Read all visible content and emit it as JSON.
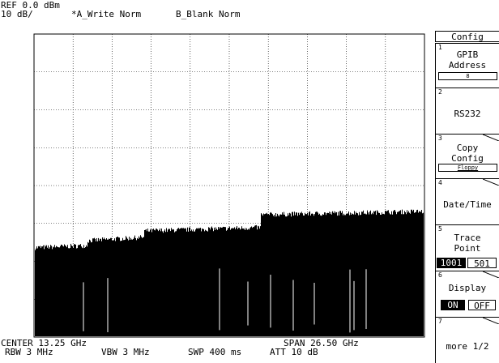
{
  "header": {
    "ref": "REF 0.0 dBm",
    "scale": "10 dB/",
    "trace_a": "*A_Write Norm",
    "trace_b": "B_Blank Norm"
  },
  "footer": {
    "center": "CENTER 13.25 GHz",
    "span": "SPAN 26.50 GHz",
    "rbw": "RBW 3 MHz",
    "vbw": "VBW 3 MHz",
    "swp": "SWP 400 ms",
    "att": "ATT 10 dB"
  },
  "menu": {
    "title": "Config",
    "keys": [
      {
        "num": "1",
        "label": "GPIB\nAddress",
        "value": "8"
      },
      {
        "num": "2",
        "label": "RS232"
      },
      {
        "num": "3",
        "label": "Copy\nConfig",
        "value": "Floppy"
      },
      {
        "num": "4",
        "label": "Date/Time"
      },
      {
        "num": "5",
        "label": "Trace\nPoint",
        "opt_on": "1001",
        "opt_off": "501"
      },
      {
        "num": "6",
        "label": "Display",
        "opt_on": "ON",
        "opt_off": "OFF"
      },
      {
        "num": "7",
        "label": "more 1/2"
      }
    ]
  },
  "colors": {
    "foreground": "#000000",
    "background": "#ffffff"
  }
}
